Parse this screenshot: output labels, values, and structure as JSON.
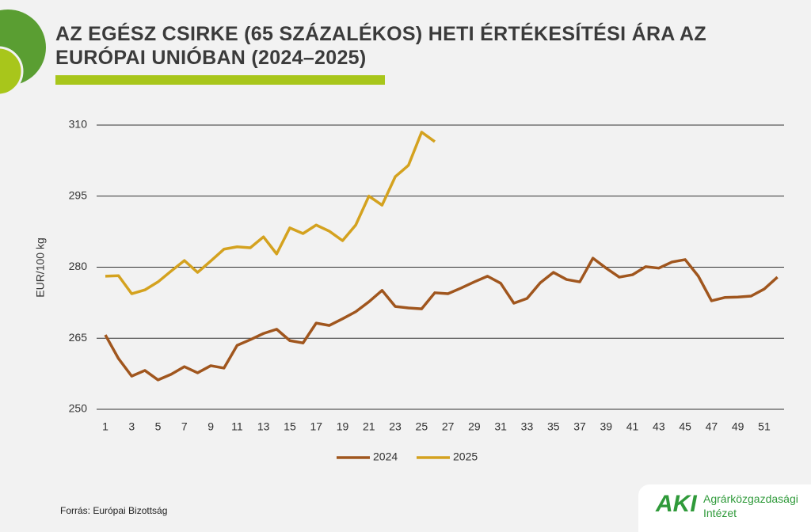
{
  "chart_data": {
    "type": "line",
    "title": "AZ EGÉSZ CSIRKE (65 SZÁZALÉKOS) HETI ÉRTÉKESÍTÉSI ÁRA AZ EURÓPAI UNIÓBAN (2024–2025)",
    "y_label": "EUR/100 kg",
    "x": [
      1,
      2,
      3,
      4,
      5,
      6,
      7,
      8,
      9,
      10,
      11,
      12,
      13,
      14,
      15,
      16,
      17,
      18,
      19,
      20,
      21,
      22,
      23,
      24,
      25,
      26,
      27,
      28,
      29,
      30,
      31,
      32,
      33,
      34,
      35,
      36,
      37,
      38,
      39,
      40,
      41,
      42,
      43,
      44,
      45,
      46,
      47,
      48,
      49,
      50,
      51,
      52
    ],
    "xlim": [
      1,
      52
    ],
    "xticks": [
      1,
      3,
      5,
      7,
      9,
      11,
      13,
      15,
      17,
      19,
      21,
      23,
      25,
      27,
      29,
      31,
      33,
      35,
      37,
      39,
      41,
      43,
      45,
      47,
      49,
      51
    ],
    "ylim": [
      250,
      310
    ],
    "yticks": [
      250,
      265,
      280,
      295,
      310
    ],
    "grid": true,
    "legend": "bottom",
    "series": [
      {
        "name": "2024",
        "color": "#a0561e",
        "values": [
          265.7,
          260.7,
          257.0,
          258.2,
          256.2,
          257.4,
          259.0,
          257.7,
          259.2,
          258.7,
          263.5,
          264.7,
          266.0,
          266.9,
          264.5,
          264.0,
          268.2,
          267.7,
          269.1,
          270.6,
          272.7,
          275.1,
          271.7,
          271.4,
          271.2,
          274.6,
          274.4,
          275.6,
          276.9,
          278.1,
          276.6,
          272.4,
          273.4,
          276.7,
          278.9,
          277.4,
          276.9,
          281.9,
          279.8,
          277.9,
          278.4,
          280.1,
          279.8,
          281.1,
          281.6,
          278.1,
          272.9,
          273.6,
          273.7,
          273.9,
          275.4,
          277.9
        ]
      },
      {
        "name": "2025",
        "color": "#d4a21f",
        "values": [
          278.1,
          278.2,
          274.4,
          275.2,
          276.9,
          279.2,
          281.4,
          278.9,
          281.3,
          283.8,
          284.3,
          284.1,
          286.4,
          282.8,
          288.3,
          287.1,
          288.9,
          287.6,
          285.6,
          288.9,
          295.0,
          293.1,
          299.1,
          301.5,
          308.5,
          306.5,
          null,
          null,
          null,
          null,
          null,
          null,
          null,
          null,
          null,
          null,
          null,
          null,
          null,
          null,
          null,
          null,
          null,
          null,
          null,
          null,
          null,
          null,
          null,
          null,
          null,
          null
        ]
      }
    ]
  },
  "source": "Forrás: Európai Bizottság",
  "logo": {
    "abbr": "AKI",
    "name_line1": "Agrárközgazdasági",
    "name_line2": "Intézet"
  }
}
